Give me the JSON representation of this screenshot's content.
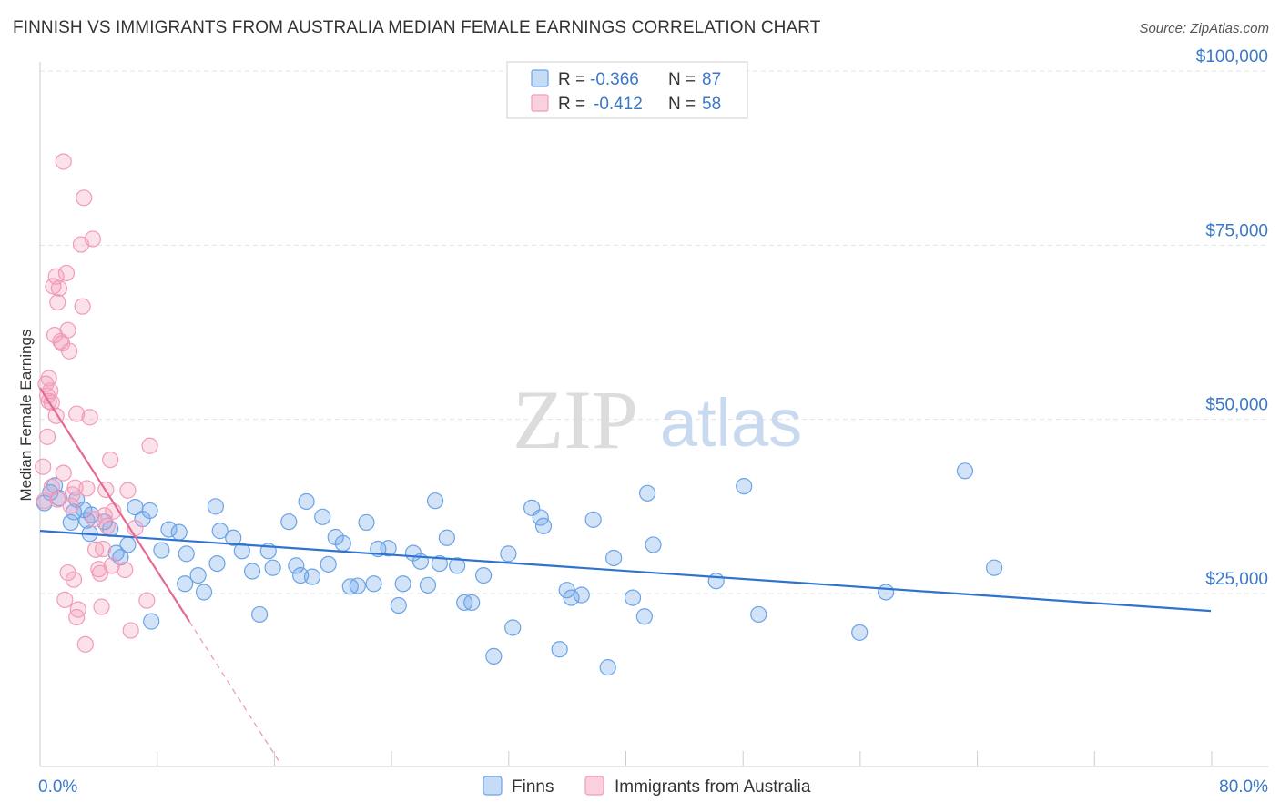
{
  "header": {
    "title": "FINNISH VS IMMIGRANTS FROM AUSTRALIA MEDIAN FEMALE EARNINGS CORRELATION CHART",
    "source": "Source: ZipAtlas.com"
  },
  "watermark": {
    "part1": "ZIP",
    "part2": "atlas"
  },
  "legend_top": {
    "rows": [
      {
        "r_label": "R =",
        "r_value": "-0.366",
        "n_label": "N =",
        "n_value": "87",
        "color": "#6aa3e8"
      },
      {
        "r_label": "R =",
        "r_value": "-0.412",
        "n_label": "N =",
        "n_value": "58",
        "color": "#f29bb8"
      }
    ]
  },
  "legend_bottom": {
    "items": [
      {
        "label": "Finns",
        "color": "#6aa3e8"
      },
      {
        "label": "Immigrants from Australia",
        "color": "#f29bb8"
      }
    ]
  },
  "chart_data": {
    "type": "scatter",
    "title": "FINNISH VS IMMIGRANTS FROM AUSTRALIA MEDIAN FEMALE EARNINGS CORRELATION CHART",
    "xlabel": "",
    "ylabel": "Median Female Earnings",
    "xlim": [
      0,
      80
    ],
    "ylim": [
      0,
      100000
    ],
    "x_tick_labels": [
      "0.0%",
      "80.0%"
    ],
    "y_ticks": [
      25000,
      50000,
      75000,
      100000
    ],
    "y_tick_labels": [
      "$25,000",
      "$50,000",
      "$75,000",
      "$100,000"
    ],
    "grid": true,
    "legend_position": "top-center",
    "series": [
      {
        "name": "Finns",
        "color": "#6aa3e8",
        "line_color": "#2f73d0",
        "trend": {
          "x1": 0,
          "y1": 34000,
          "x2": 80,
          "y2": 22500
        },
        "points": [
          [
            0.3,
            38000
          ],
          [
            0.7,
            39500
          ],
          [
            1.0,
            40500
          ],
          [
            1.3,
            38700
          ],
          [
            2.1,
            35200
          ],
          [
            2.3,
            36700
          ],
          [
            2.5,
            38500
          ],
          [
            3.0,
            37000
          ],
          [
            3.2,
            35500
          ],
          [
            3.5,
            36300
          ],
          [
            4.4,
            35300
          ],
          [
            4.8,
            34300
          ],
          [
            5.2,
            30800
          ],
          [
            5.5,
            30200
          ],
          [
            6.0,
            32000
          ],
          [
            6.5,
            37400
          ],
          [
            7.0,
            35700
          ],
          [
            7.5,
            36900
          ],
          [
            8.3,
            31200
          ],
          [
            8.8,
            34200
          ],
          [
            9.5,
            33800
          ],
          [
            10.0,
            30700
          ],
          [
            10.8,
            27600
          ],
          [
            11.2,
            25200
          ],
          [
            12.0,
            37500
          ],
          [
            12.3,
            34000
          ],
          [
            13.2,
            33000
          ],
          [
            13.8,
            31100
          ],
          [
            14.5,
            28200
          ],
          [
            15.0,
            22000
          ],
          [
            15.6,
            31100
          ],
          [
            17.0,
            35300
          ],
          [
            17.5,
            29000
          ],
          [
            17.8,
            27600
          ],
          [
            18.2,
            38200
          ],
          [
            18.6,
            27400
          ],
          [
            19.3,
            36000
          ],
          [
            19.7,
            29200
          ],
          [
            20.2,
            33100
          ],
          [
            20.7,
            32200
          ],
          [
            21.2,
            26000
          ],
          [
            21.7,
            26100
          ],
          [
            22.3,
            35200
          ],
          [
            22.8,
            26400
          ],
          [
            23.1,
            31400
          ],
          [
            23.8,
            31500
          ],
          [
            24.5,
            23300
          ],
          [
            24.8,
            26400
          ],
          [
            25.5,
            30800
          ],
          [
            26.0,
            29600
          ],
          [
            26.5,
            26200
          ],
          [
            27.0,
            38300
          ],
          [
            27.3,
            29300
          ],
          [
            27.8,
            33000
          ],
          [
            28.5,
            29000
          ],
          [
            29.0,
            23700
          ],
          [
            29.5,
            23700
          ],
          [
            30.3,
            27600
          ],
          [
            31.0,
            16000
          ],
          [
            32.0,
            30700
          ],
          [
            32.3,
            20100
          ],
          [
            33.6,
            37300
          ],
          [
            34.2,
            35900
          ],
          [
            34.4,
            34700
          ],
          [
            35.5,
            17000
          ],
          [
            36.0,
            25500
          ],
          [
            36.3,
            24400
          ],
          [
            37.0,
            24800
          ],
          [
            37.8,
            35600
          ],
          [
            38.8,
            14400
          ],
          [
            39.2,
            30100
          ],
          [
            40.5,
            24400
          ],
          [
            41.3,
            21700
          ],
          [
            41.9,
            32000
          ],
          [
            41.5,
            39400
          ],
          [
            46.2,
            26800
          ],
          [
            48.1,
            40400
          ],
          [
            49.1,
            22000
          ],
          [
            56.0,
            19400
          ],
          [
            57.8,
            25200
          ],
          [
            63.2,
            42600
          ],
          [
            65.2,
            28700
          ],
          [
            7.6,
            21000
          ],
          [
            3.4,
            33600
          ],
          [
            9.9,
            26400
          ],
          [
            12.1,
            29300
          ],
          [
            15.9,
            28700
          ]
        ]
      },
      {
        "name": "Immigrants from Australia",
        "color": "#f29bb8",
        "line_color": "#e46a94",
        "trend": {
          "x1": 0,
          "y1": 54500,
          "x2": 10.2,
          "y2": 21000
        },
        "trend_dashed": {
          "x1": 10.2,
          "y1": 21000,
          "x2": 16.3,
          "y2": 1000
        },
        "points": [
          [
            0.2,
            43200
          ],
          [
            0.3,
            38300
          ],
          [
            0.4,
            55100
          ],
          [
            0.5,
            53400
          ],
          [
            0.5,
            47500
          ],
          [
            0.6,
            52600
          ],
          [
            0.6,
            55900
          ],
          [
            0.7,
            54100
          ],
          [
            0.8,
            52400
          ],
          [
            0.9,
            69100
          ],
          [
            1.0,
            62100
          ],
          [
            1.1,
            70500
          ],
          [
            1.1,
            50500
          ],
          [
            1.2,
            66800
          ],
          [
            1.3,
            68800
          ],
          [
            1.4,
            61200
          ],
          [
            1.5,
            60900
          ],
          [
            1.6,
            87000
          ],
          [
            1.6,
            42300
          ],
          [
            1.7,
            24100
          ],
          [
            1.8,
            71000
          ],
          [
            1.9,
            28000
          ],
          [
            1.9,
            62800
          ],
          [
            2.0,
            59800
          ],
          [
            2.1,
            37600
          ],
          [
            2.2,
            39200
          ],
          [
            2.3,
            27000
          ],
          [
            2.4,
            40200
          ],
          [
            2.5,
            21600
          ],
          [
            2.6,
            22700
          ],
          [
            2.8,
            75100
          ],
          [
            2.9,
            66200
          ],
          [
            3.0,
            81800
          ],
          [
            3.1,
            17700
          ],
          [
            3.2,
            40100
          ],
          [
            3.4,
            50300
          ],
          [
            3.6,
            75900
          ],
          [
            3.7,
            35700
          ],
          [
            3.8,
            31300
          ],
          [
            4.0,
            28500
          ],
          [
            4.1,
            27900
          ],
          [
            4.2,
            23100
          ],
          [
            4.3,
            31400
          ],
          [
            4.4,
            36200
          ],
          [
            4.5,
            39900
          ],
          [
            4.6,
            34700
          ],
          [
            4.8,
            44200
          ],
          [
            4.9,
            29000
          ],
          [
            5.0,
            36800
          ],
          [
            5.8,
            28400
          ],
          [
            6.0,
            39800
          ],
          [
            6.2,
            19700
          ],
          [
            6.5,
            34400
          ],
          [
            7.3,
            24000
          ],
          [
            7.5,
            46200
          ],
          [
            2.5,
            50800
          ],
          [
            1.2,
            38500
          ],
          [
            0.8,
            40300
          ]
        ]
      }
    ]
  }
}
